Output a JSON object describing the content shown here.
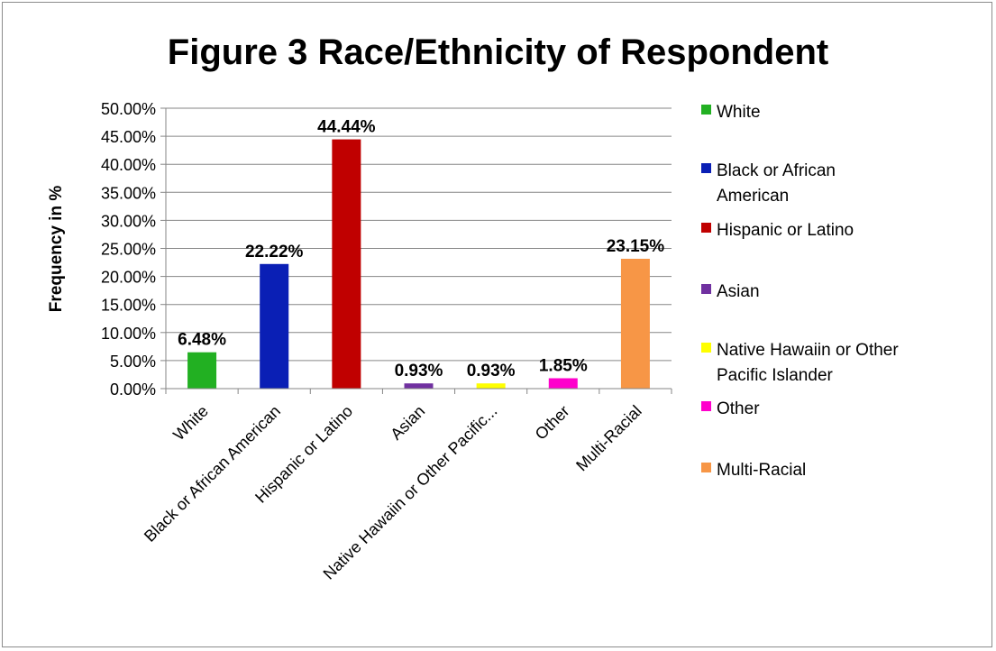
{
  "chart_data": {
    "type": "bar",
    "title": "Figure 3 Race/Ethnicity of Respondent",
    "xlabel": "",
    "ylabel": "Frequency in %",
    "ylim": [
      0,
      50
    ],
    "yticks": [
      "0.00%",
      "5.00%",
      "10.00%",
      "15.00%",
      "20.00%",
      "25.00%",
      "30.00%",
      "35.00%",
      "40.00%",
      "45.00%",
      "50.00%"
    ],
    "grid": true,
    "legend_position": "right",
    "categories": [
      "White",
      "Black or African American",
      "Hispanic or Latino",
      "Asian",
      "Native Hawaiin or Other Pacific...",
      "Other",
      "Multi-Racial"
    ],
    "values": [
      6.48,
      22.22,
      44.44,
      0.93,
      0.93,
      1.85,
      23.15
    ],
    "data_labels": [
      "6.48%",
      "22.22%",
      "44.44%",
      "0.93%",
      "0.93%",
      "1.85%",
      "23.15%"
    ],
    "colors": [
      "#22b022",
      "#0a1fb5",
      "#c00000",
      "#7030a0",
      "#ffff00",
      "#ff00cc",
      "#f79646"
    ],
    "legend": [
      {
        "lines": [
          "White"
        ],
        "color": "#22b022"
      },
      {
        "lines": [
          "Black or African",
          "American"
        ],
        "color": "#0a1fb5"
      },
      {
        "lines": [
          "Hispanic or Latino"
        ],
        "color": "#c00000"
      },
      {
        "lines": [
          "Asian"
        ],
        "color": "#7030a0"
      },
      {
        "lines": [
          "Native Hawaiin or Other",
          "Pacific Islander"
        ],
        "color": "#ffff00"
      },
      {
        "lines": [
          "Other"
        ],
        "color": "#ff00cc"
      },
      {
        "lines": [
          "Multi-Racial"
        ],
        "color": "#f79646"
      }
    ]
  }
}
